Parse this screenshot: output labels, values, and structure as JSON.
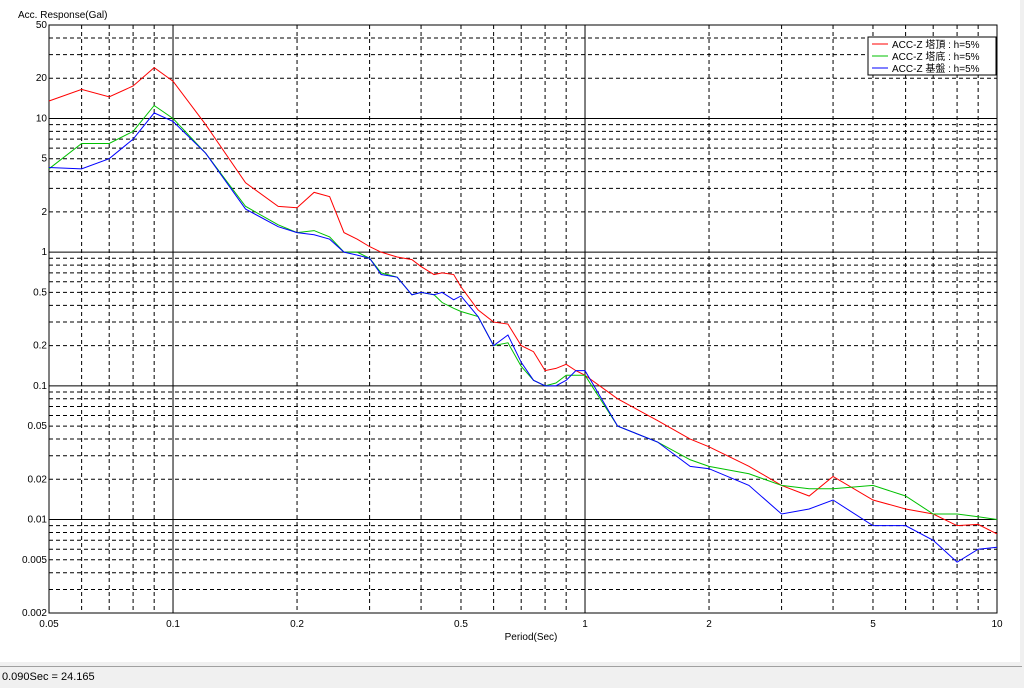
{
  "chart_data": {
    "type": "line",
    "ylabel": "Acc. Response(Gal)",
    "xlabel": "Period(Sec)",
    "status": "0.090Sec = 24.165",
    "log_x": true,
    "log_y": true,
    "grid": true,
    "legend": "upper right",
    "xlim": [
      0.05,
      10
    ],
    "ylim": [
      0.002,
      50
    ],
    "xticks": [
      0.05,
      0.1,
      0.2,
      0.5,
      1,
      2,
      5,
      10
    ],
    "yticks": [
      0.002,
      0.005,
      0.01,
      0.02,
      0.05,
      0.1,
      0.2,
      0.5,
      1,
      2,
      5,
      10,
      20,
      50
    ],
    "xminor": [
      0.06,
      0.07,
      0.08,
      0.09,
      0.3,
      0.4,
      0.6,
      0.7,
      0.8,
      0.9,
      3,
      4,
      6,
      7,
      8,
      9
    ],
    "yminor": [
      0.003,
      0.004,
      0.006,
      0.007,
      0.008,
      0.009,
      0.03,
      0.04,
      0.06,
      0.07,
      0.08,
      0.09,
      0.3,
      0.4,
      0.6,
      0.7,
      0.8,
      0.9,
      3,
      4,
      6,
      7,
      8,
      9,
      30,
      40
    ],
    "x": [
      0.05,
      0.06,
      0.07,
      0.08,
      0.09,
      0.1,
      0.12,
      0.15,
      0.18,
      0.2,
      0.22,
      0.24,
      0.26,
      0.28,
      0.3,
      0.32,
      0.35,
      0.38,
      0.4,
      0.43,
      0.45,
      0.48,
      0.5,
      0.55,
      0.6,
      0.65,
      0.7,
      0.75,
      0.8,
      0.85,
      0.9,
      0.95,
      1.0,
      1.2,
      1.5,
      1.8,
      2,
      2.5,
      3,
      3.5,
      4,
      5,
      6,
      7,
      8,
      9,
      10
    ],
    "series": [
      {
        "name": "ACC-Z 塔頂 : h=5%",
        "color": "#ff0000",
        "values": [
          13.5,
          16.5,
          14.5,
          17.5,
          24,
          19,
          9,
          3.3,
          2.2,
          2.15,
          2.8,
          2.6,
          1.4,
          1.25,
          1.1,
          1.0,
          0.92,
          0.88,
          0.78,
          0.68,
          0.7,
          0.68,
          0.55,
          0.37,
          0.3,
          0.29,
          0.2,
          0.18,
          0.13,
          0.135,
          0.145,
          0.13,
          0.12,
          0.08,
          0.055,
          0.04,
          0.035,
          0.025,
          0.018,
          0.015,
          0.021,
          0.014,
          0.012,
          0.011,
          0.009,
          0.0092,
          0.0078
        ]
      },
      {
        "name": "ACC-Z 塔底 : h=5%",
        "color": "#00c000",
        "values": [
          4.2,
          6.5,
          6.5,
          8,
          12.5,
          10,
          5.5,
          2.2,
          1.6,
          1.4,
          1.45,
          1.3,
          1.0,
          1.0,
          0.9,
          0.7,
          0.65,
          0.48,
          0.5,
          0.48,
          0.42,
          0.38,
          0.36,
          0.33,
          0.2,
          0.21,
          0.14,
          0.11,
          0.1,
          0.105,
          0.12,
          0.12,
          0.12,
          0.05,
          0.038,
          0.028,
          0.025,
          0.022,
          0.018,
          0.017,
          0.017,
          0.018,
          0.015,
          0.011,
          0.011,
          0.0105,
          0.01
        ]
      },
      {
        "name": "ACC-Z 基盤 : h=5%",
        "color": "#0000ff",
        "values": [
          4.3,
          4.2,
          5,
          7,
          11,
          9.5,
          5.5,
          2.1,
          1.55,
          1.4,
          1.35,
          1.25,
          1.0,
          0.95,
          0.9,
          0.68,
          0.65,
          0.48,
          0.5,
          0.48,
          0.5,
          0.44,
          0.47,
          0.33,
          0.2,
          0.24,
          0.15,
          0.11,
          0.1,
          0.1,
          0.11,
          0.13,
          0.13,
          0.05,
          0.038,
          0.025,
          0.024,
          0.018,
          0.011,
          0.012,
          0.014,
          0.009,
          0.009,
          0.007,
          0.0048,
          0.006,
          0.0062
        ]
      }
    ]
  }
}
